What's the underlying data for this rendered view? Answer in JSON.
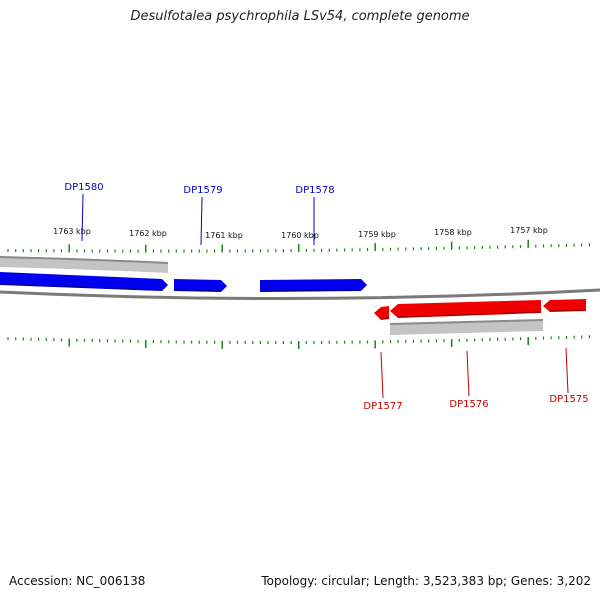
{
  "title": "Desulfotalea psychrophila LSv54, complete genome",
  "footer": {
    "accession": "Accession: NC_006138",
    "stats": "Topology: circular; Length: 3,523,383 bp; Genes: 3,202"
  },
  "colors": {
    "forward": "#0000ee",
    "reverse": "#ee0000",
    "tick": "#1f7f1f",
    "backbone": "#7a7a7a",
    "gc_band": "#b8b8b8"
  },
  "ticks": [
    {
      "label": "1763 kbp"
    },
    {
      "label": "1762 kbp"
    },
    {
      "label": "1761 kbp"
    },
    {
      "label": "1760 kbp"
    },
    {
      "label": "1759 kbp"
    },
    {
      "label": "1758 kbp"
    },
    {
      "label": "1757 kbp"
    }
  ],
  "genes_forward": [
    {
      "label": "DP1580"
    },
    {
      "label": "DP1579"
    },
    {
      "label": "DP1578"
    }
  ],
  "genes_reverse": [
    {
      "label": "DP1577"
    },
    {
      "label": "DP1576"
    },
    {
      "label": "DP1575"
    }
  ]
}
